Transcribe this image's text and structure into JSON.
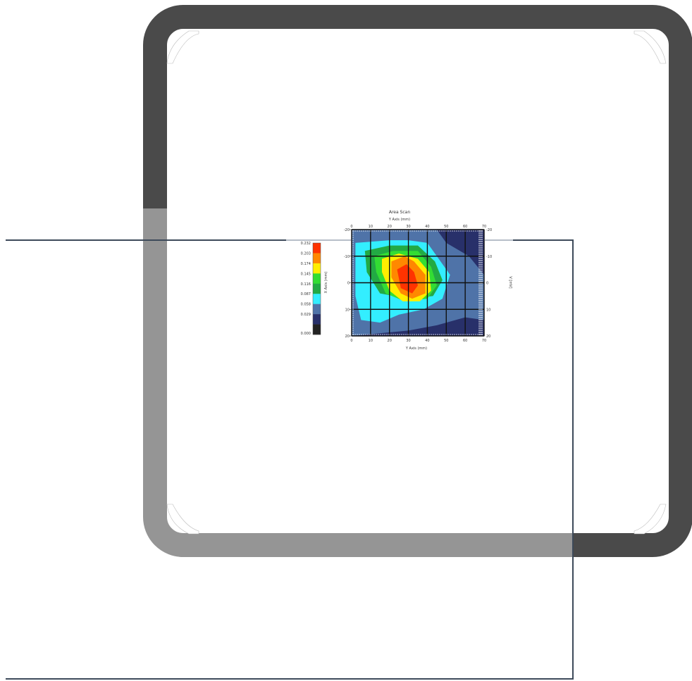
{
  "colors": {
    "frame_dark": "#4a4a4a",
    "frame_light": "#959595",
    "rule_line": "#3d4a5a",
    "plot_bg": "#25306a"
  },
  "chart_data": {
    "type": "heatmap",
    "title": "Area Scan",
    "x_top_label": "Y Axis (mm)",
    "xlabel": "Y Axis (mm)",
    "ylabel": "X Axis (mm)",
    "y2label": "V [mV]",
    "x_ticks": [
      "0",
      "10",
      "20",
      "30",
      "40",
      "50",
      "60",
      "70"
    ],
    "x_ticks_display": [
      "0",
      "10",
      "20",
      "30",
      "40",
      "50",
      "60",
      "70"
    ],
    "y_ticks": [
      "-20",
      "-10",
      "0",
      "10",
      "20"
    ],
    "legend_levels": [
      "0.232",
      "0.203",
      "0.174",
      "0.145",
      "0.116",
      "0.087",
      "0.058",
      "0.029",
      "0.000"
    ],
    "legend_colors": [
      "#ff3300",
      "#ff8800",
      "#ffee00",
      "#33dd33",
      "#22aa44",
      "#33eeff",
      "#4f73a8",
      "#28306a",
      "#222222"
    ],
    "grid": true,
    "xlim": [
      0,
      70
    ],
    "ylim": [
      -20,
      20
    ],
    "level_bands": [
      {
        "name": "0.029-0.058",
        "color": "#28306a",
        "points": [
          [
            0,
            -20
          ],
          [
            70,
            -20
          ],
          [
            70,
            20
          ],
          [
            0,
            20
          ]
        ]
      },
      {
        "name": "0.058-0.087",
        "color": "#4f73a8",
        "points": [
          [
            0,
            -20
          ],
          [
            45,
            -20
          ],
          [
            50,
            -15
          ],
          [
            62,
            -10
          ],
          [
            70,
            -3
          ],
          [
            70,
            14
          ],
          [
            60,
            13
          ],
          [
            45,
            16
          ],
          [
            30,
            18
          ],
          [
            0,
            20
          ]
        ]
      },
      {
        "name": "0.087-0.116",
        "color": "#33eeff",
        "points": [
          [
            2,
            -15
          ],
          [
            20,
            -16
          ],
          [
            30,
            -16
          ],
          [
            40,
            -15
          ],
          [
            45,
            -10
          ],
          [
            52,
            -3
          ],
          [
            48,
            6
          ],
          [
            38,
            10
          ],
          [
            25,
            12
          ],
          [
            15,
            15
          ],
          [
            5,
            14
          ],
          [
            2,
            5
          ]
        ]
      },
      {
        "name": "0.116-0.145",
        "color": "#22aa44",
        "points": [
          [
            7,
            -12
          ],
          [
            20,
            -14
          ],
          [
            35,
            -14
          ],
          [
            44,
            -8
          ],
          [
            48,
            -1
          ],
          [
            43,
            5
          ],
          [
            30,
            6
          ],
          [
            15,
            4
          ],
          [
            8,
            -4
          ]
        ]
      },
      {
        "name": "0.145-0.174",
        "color": "#33dd33",
        "points": [
          [
            12,
            -10
          ],
          [
            22,
            -12
          ],
          [
            35,
            -12
          ],
          [
            42,
            -6
          ],
          [
            45,
            1
          ],
          [
            40,
            6
          ],
          [
            28,
            7
          ],
          [
            18,
            4
          ],
          [
            13,
            -4
          ]
        ]
      },
      {
        "name": "0.174-0.203",
        "color": "#ffee00",
        "points": [
          [
            16,
            -9
          ],
          [
            25,
            -11
          ],
          [
            35,
            -9
          ],
          [
            41,
            -4
          ],
          [
            42,
            3
          ],
          [
            36,
            7
          ],
          [
            27,
            7
          ],
          [
            20,
            3
          ],
          [
            16,
            -4
          ]
        ]
      },
      {
        "name": "0.203-0.232",
        "color": "#ff8800",
        "points": [
          [
            21,
            -8
          ],
          [
            28,
            -10
          ],
          [
            33,
            -8
          ],
          [
            39,
            -3
          ],
          [
            39,
            4
          ],
          [
            32,
            6
          ],
          [
            26,
            4
          ],
          [
            21,
            -2
          ]
        ]
      },
      {
        "name": "0.232+",
        "color": "#ff3300",
        "points": [
          [
            24,
            -5
          ],
          [
            29,
            -7
          ],
          [
            33,
            -4
          ],
          [
            35,
            1
          ],
          [
            32,
            4
          ],
          [
            26,
            2
          ]
        ]
      }
    ]
  }
}
